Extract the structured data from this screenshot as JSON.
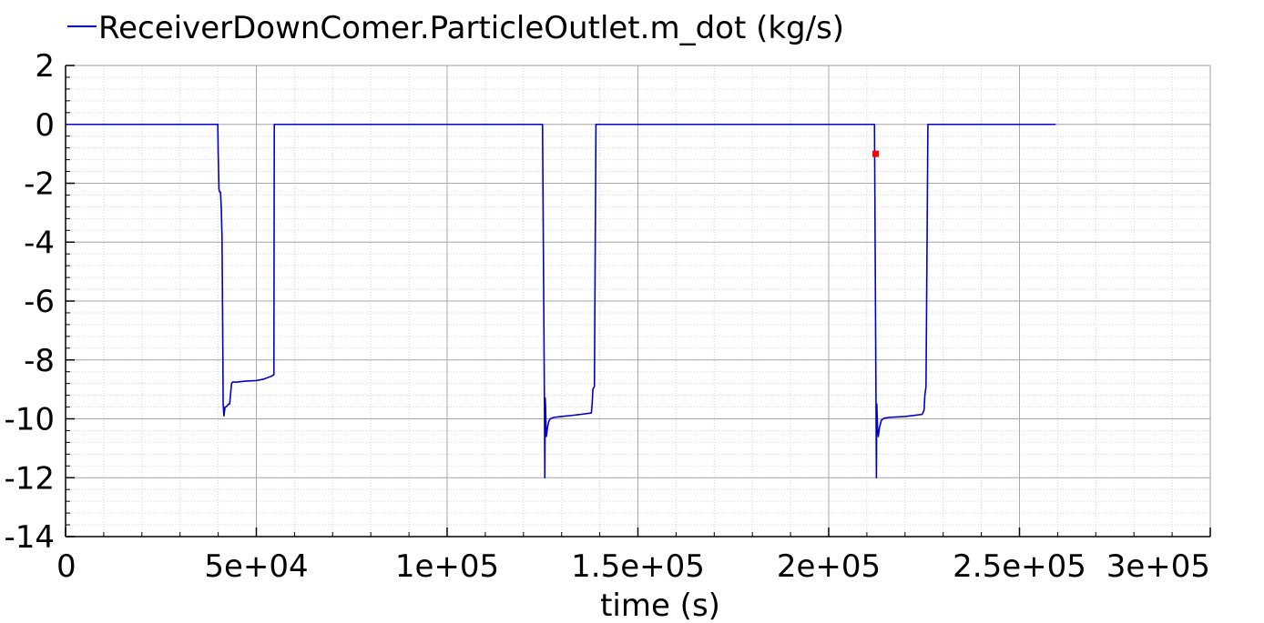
{
  "chart_data": {
    "type": "line",
    "title": "",
    "xlabel": "time (s)",
    "ylabel": "",
    "xlim": [
      0,
      300000
    ],
    "ylim": [
      -14,
      2
    ],
    "grid": true,
    "legend_placement": "top-left",
    "x_ticks": [
      0,
      50000,
      100000,
      150000,
      200000,
      250000,
      300000
    ],
    "x_tick_labels": [
      "0",
      "5e+04",
      "1e+05",
      "1.5e+05",
      "2e+05",
      "2.5e+05",
      "3e+05"
    ],
    "y_ticks": [
      2,
      0,
      -2,
      -4,
      -6,
      -8,
      -10,
      -12,
      -14
    ],
    "y_tick_labels": [
      "2",
      "0",
      "-2",
      "-4",
      "-6",
      "-8",
      "-10",
      "-12",
      "-14"
    ],
    "series": [
      {
        "name": "ReceiverDownComer.ParticleOutlet.m_dot (kg/s)",
        "color": "#0000cc",
        "x": [
          0,
          39900,
          40000,
          40200,
          40400,
          40600,
          40800,
          41000,
          41100,
          41200,
          41300,
          41500,
          41800,
          42000,
          42400,
          42700,
          43000,
          43500,
          43800,
          44000,
          44500,
          45000,
          47000,
          50000,
          52000,
          54000,
          54600,
          54700,
          55000,
          80000,
          100000,
          125000,
          125500,
          125600,
          125700,
          125800,
          125900,
          126000,
          126300,
          126600,
          127000,
          128000,
          130000,
          133000,
          135000,
          137800,
          138000,
          138200,
          138600,
          139000,
          170000,
          200000,
          212000,
          212400,
          212500,
          212600,
          212700,
          212800,
          213000,
          213300,
          213800,
          214500,
          216000,
          220000,
          224500,
          225000,
          225200,
          225500,
          226000,
          240000,
          259500
        ],
        "y": [
          0,
          0,
          -1,
          -2.2,
          -2.3,
          -2.3,
          -2.8,
          -3.8,
          -5.5,
          -7.3,
          -9.5,
          -9.9,
          -9.6,
          -9.6,
          -9.55,
          -9.5,
          -9.5,
          -8.8,
          -8.75,
          -8.75,
          -8.75,
          -8.75,
          -8.72,
          -8.7,
          -8.65,
          -8.55,
          -8.5,
          0,
          0,
          0,
          0,
          0,
          -9.5,
          -12,
          -9.3,
          -9.6,
          -10.2,
          -10.6,
          -10.3,
          -10.1,
          -10.0,
          -9.95,
          -9.92,
          -9.88,
          -9.85,
          -9.8,
          -9.5,
          -9.0,
          -8.9,
          0,
          0,
          0,
          0,
          -9.5,
          -12,
          -9.5,
          -9.9,
          -10.3,
          -10.6,
          -10.3,
          -10.05,
          -9.98,
          -9.95,
          -9.92,
          -9.85,
          -9.7,
          -9.2,
          -8.9,
          0,
          0,
          0
        ]
      }
    ],
    "annotations": [
      {
        "type": "marker",
        "x": 212300,
        "y": -1.0,
        "color": "#ff0000"
      }
    ]
  }
}
